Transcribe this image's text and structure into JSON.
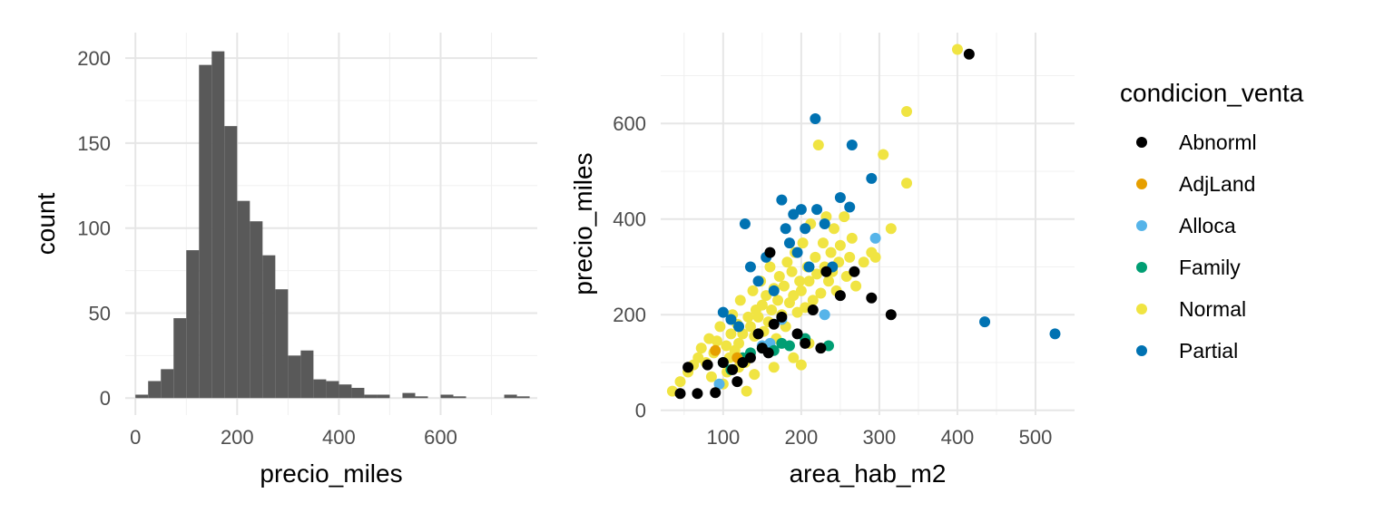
{
  "chart_data": [
    {
      "type": "bar",
      "subtype": "histogram",
      "xlabel": "precio_miles",
      "ylabel": "count",
      "xlim": [
        -20,
        790
      ],
      "ylim": [
        -10,
        215
      ],
      "xticks": [
        0,
        200,
        400,
        600
      ],
      "yticks": [
        0,
        50,
        100,
        150,
        200
      ],
      "bin_width": 25,
      "bins_start": [
        0,
        25,
        50,
        75,
        100,
        125,
        150,
        175,
        200,
        225,
        250,
        275,
        300,
        325,
        350,
        375,
        400,
        425,
        450,
        475,
        525,
        550,
        600,
        625,
        725,
        750
      ],
      "values": [
        2,
        10,
        17,
        47,
        87,
        196,
        204,
        160,
        116,
        104,
        84,
        64,
        25,
        28,
        11,
        10,
        8,
        6,
        2,
        2,
        3,
        1,
        2,
        1,
        2,
        1
      ],
      "bar_color": "#595959",
      "grid": true
    },
    {
      "type": "scatter",
      "xlabel": "area_hab_m2",
      "ylabel": "precio_miles",
      "xlim": [
        20,
        550
      ],
      "ylim": [
        -10,
        790
      ],
      "xticks": [
        100,
        200,
        300,
        400,
        500
      ],
      "yticks": [
        0,
        200,
        400,
        600
      ],
      "grid": true,
      "legend_title": "condicion_venta",
      "legend_position": "right",
      "series": [
        {
          "name": "Abnorml",
          "color": "#000000",
          "points": [
            [
              45,
              35
            ],
            [
              55,
              90
            ],
            [
              67,
              35
            ],
            [
              80,
              95
            ],
            [
              90,
              37
            ],
            [
              100,
              100
            ],
            [
              112,
              85
            ],
            [
              118,
              60
            ],
            [
              125,
              100
            ],
            [
              135,
              110
            ],
            [
              145,
              160
            ],
            [
              150,
              130
            ],
            [
              158,
              120
            ],
            [
              160,
              330
            ],
            [
              165,
              180
            ],
            [
              175,
              195
            ],
            [
              195,
              160
            ],
            [
              205,
              140
            ],
            [
              215,
              210
            ],
            [
              225,
              130
            ],
            [
              232,
              290
            ],
            [
              250,
              240
            ],
            [
              268,
              290
            ],
            [
              290,
              235
            ],
            [
              315,
              200
            ],
            [
              415,
              745
            ]
          ]
        },
        {
          "name": "AdjLand",
          "color": "#E69F00",
          "points": [
            [
              90,
              125
            ],
            [
              118,
              110
            ]
          ]
        },
        {
          "name": "Alloca",
          "color": "#56B4E9",
          "points": [
            [
              95,
              55
            ],
            [
              150,
              135
            ],
            [
              160,
              140
            ],
            [
              175,
              190
            ],
            [
              230,
              200
            ],
            [
              295,
              360
            ]
          ]
        },
        {
          "name": "Family",
          "color": "#009E73",
          "points": [
            [
              100,
              100
            ],
            [
              110,
              85
            ],
            [
              125,
              110
            ],
            [
              135,
              120
            ],
            [
              150,
              130
            ],
            [
              165,
              125
            ],
            [
              175,
              140
            ],
            [
              185,
              135
            ],
            [
              205,
              150
            ],
            [
              235,
              135
            ]
          ]
        },
        {
          "name": "Normal",
          "color": "#F0E442",
          "points": [
            [
              35,
              40
            ],
            [
              45,
              60
            ],
            [
              55,
              80
            ],
            [
              62,
              95
            ],
            [
              68,
              110
            ],
            [
              72,
              130
            ],
            [
              78,
              100
            ],
            [
              82,
              150
            ],
            [
              88,
              120
            ],
            [
              92,
              145
            ],
            [
              96,
              175
            ],
            [
              100,
              55
            ],
            [
              104,
              135
            ],
            [
              108,
              110
            ],
            [
              110,
              160
            ],
            [
              112,
              200
            ],
            [
              115,
              125
            ],
            [
              118,
              180
            ],
            [
              120,
              140
            ],
            [
              122,
              230
            ],
            [
              125,
              160
            ],
            [
              128,
              100
            ],
            [
              130,
              40
            ],
            [
              132,
              195
            ],
            [
              135,
              175
            ],
            [
              138,
              250
            ],
            [
              140,
              155
            ],
            [
              142,
              210
            ],
            [
              145,
              195
            ],
            [
              148,
              270
            ],
            [
              150,
              220
            ],
            [
              152,
              165
            ],
            [
              155,
              240
            ],
            [
              158,
              185
            ],
            [
              160,
              300
            ],
            [
              162,
              210
            ],
            [
              165,
              255
            ],
            [
              168,
              150
            ],
            [
              170,
              230
            ],
            [
              172,
              280
            ],
            [
              175,
              200
            ],
            [
              178,
              260
            ],
            [
              180,
              175
            ],
            [
              182,
              310
            ],
            [
              185,
              225
            ],
            [
              188,
              290
            ],
            [
              190,
              240
            ],
            [
              192,
              330
            ],
            [
              195,
              205
            ],
            [
              198,
              270
            ],
            [
              200,
              250
            ],
            [
              202,
              350
            ],
            [
              205,
              215
            ],
            [
              208,
              300
            ],
            [
              210,
              270
            ],
            [
              212,
              390
            ],
            [
              215,
              230
            ],
            [
              218,
              320
            ],
            [
              220,
              285
            ],
            [
              222,
              555
            ],
            [
              225,
              245
            ],
            [
              228,
              350
            ],
            [
              230,
              300
            ],
            [
              232,
              405
            ],
            [
              235,
              270
            ],
            [
              238,
              330
            ],
            [
              240,
              290
            ],
            [
              242,
              380
            ],
            [
              245,
              250
            ],
            [
              248,
              310
            ],
            [
              250,
              345
            ],
            [
              255,
              405
            ],
            [
              258,
              280
            ],
            [
              262,
              320
            ],
            [
              265,
              360
            ],
            [
              270,
              260
            ],
            [
              280,
              310
            ],
            [
              290,
              330
            ],
            [
              295,
              320
            ],
            [
              305,
              535
            ],
            [
              315,
              380
            ],
            [
              335,
              625
            ],
            [
              335,
              475
            ],
            [
              400,
              755
            ],
            [
              190,
              110
            ],
            [
              200,
              95
            ],
            [
              210,
              140
            ],
            [
              165,
              90
            ],
            [
              140,
              75
            ],
            [
              120,
              90
            ],
            [
              105,
              80
            ],
            [
              85,
              70
            ]
          ]
        },
        {
          "name": "Partial",
          "color": "#0072B2",
          "points": [
            [
              100,
              205
            ],
            [
              110,
              190
            ],
            [
              120,
              175
            ],
            [
              128,
              390
            ],
            [
              135,
              300
            ],
            [
              145,
              270
            ],
            [
              155,
              320
            ],
            [
              165,
              250
            ],
            [
              175,
              440
            ],
            [
              180,
              380
            ],
            [
              185,
              350
            ],
            [
              190,
              410
            ],
            [
              195,
              330
            ],
            [
              200,
              420
            ],
            [
              205,
              380
            ],
            [
              210,
              300
            ],
            [
              218,
              610
            ],
            [
              220,
              420
            ],
            [
              230,
              390
            ],
            [
              240,
              300
            ],
            [
              250,
              445
            ],
            [
              262,
              425
            ],
            [
              265,
              555
            ],
            [
              290,
              485
            ],
            [
              435,
              185
            ],
            [
              525,
              160
            ]
          ]
        }
      ]
    }
  ]
}
